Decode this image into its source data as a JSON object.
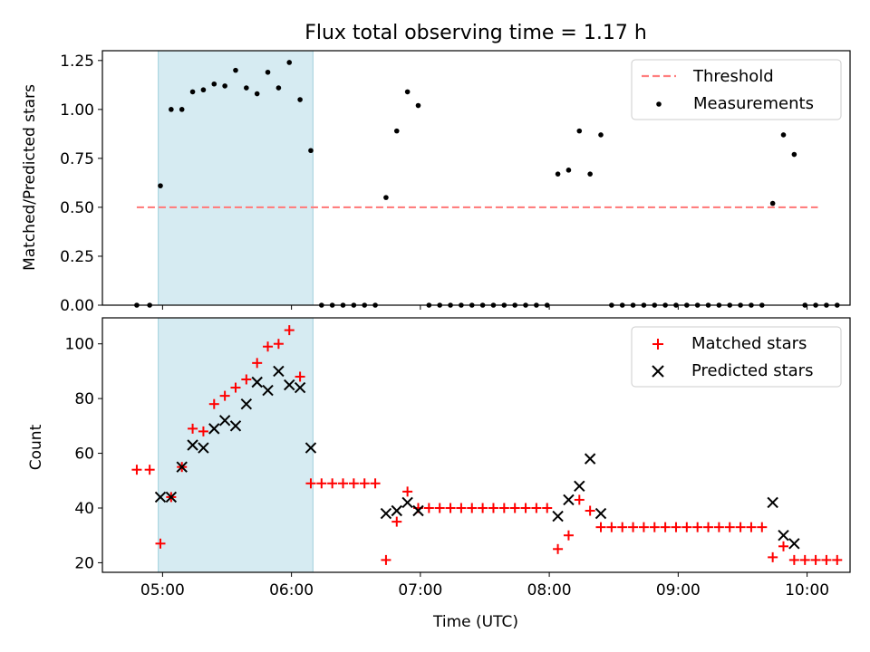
{
  "chart_data": [
    {
      "type": "scatter",
      "title": "Flux total observing time = 1.17 h",
      "xlabel": "",
      "ylabel": "Matched/Predicted stars",
      "xlim": [
        "04:32",
        "10:20"
      ],
      "ylim": [
        0,
        1.3
      ],
      "yticks": [
        0.0,
        0.25,
        0.5,
        0.75,
        1.0,
        1.25
      ],
      "ytick_labels": [
        "0.00",
        "0.25",
        "0.50",
        "0.75",
        "1.00",
        "1.25"
      ],
      "xticks": [
        "05:00",
        "06:00",
        "07:00",
        "08:00",
        "09:00",
        "10:00"
      ],
      "shaded_interval": [
        "04:58",
        "06:10"
      ],
      "legend": {
        "placement": "top-right",
        "entries": [
          "Threshold",
          "Measurements"
        ]
      },
      "threshold": {
        "name": "Threshold",
        "y": 0.5,
        "x_range": [
          "04:48",
          "10:05"
        ],
        "color": "#ff7f7f"
      },
      "series": [
        {
          "name": "Measurements",
          "color": "#000000",
          "marker": "dot",
          "points": [
            [
              "04:48",
              0
            ],
            [
              "04:54",
              0
            ],
            [
              "04:59",
              0.61
            ],
            [
              "05:04",
              1.0
            ],
            [
              "05:09",
              1.0
            ],
            [
              "05:14",
              1.09
            ],
            [
              "05:19",
              1.1
            ],
            [
              "05:24",
              1.13
            ],
            [
              "05:29",
              1.12
            ],
            [
              "05:34",
              1.2
            ],
            [
              "05:39",
              1.11
            ],
            [
              "05:44",
              1.08
            ],
            [
              "05:49",
              1.19
            ],
            [
              "05:54",
              1.11
            ],
            [
              "05:59",
              1.24
            ],
            [
              "06:04",
              1.05
            ],
            [
              "06:09",
              0.79
            ],
            [
              "06:14",
              0
            ],
            [
              "06:19",
              0
            ],
            [
              "06:24",
              0
            ],
            [
              "06:29",
              0
            ],
            [
              "06:34",
              0
            ],
            [
              "06:39",
              0
            ],
            [
              "06:44",
              0.55
            ],
            [
              "06:49",
              0.89
            ],
            [
              "06:54",
              1.09
            ],
            [
              "06:59",
              1.02
            ],
            [
              "07:04",
              0
            ],
            [
              "07:09",
              0
            ],
            [
              "07:14",
              0
            ],
            [
              "07:19",
              0
            ],
            [
              "07:24",
              0
            ],
            [
              "07:29",
              0
            ],
            [
              "07:34",
              0
            ],
            [
              "07:39",
              0
            ],
            [
              "07:44",
              0
            ],
            [
              "07:49",
              0
            ],
            [
              "07:54",
              0
            ],
            [
              "07:59",
              0
            ],
            [
              "08:04",
              0.67
            ],
            [
              "08:09",
              0.69
            ],
            [
              "08:14",
              0.89
            ],
            [
              "08:19",
              0.67
            ],
            [
              "08:24",
              0.87
            ],
            [
              "08:29",
              0
            ],
            [
              "08:34",
              0
            ],
            [
              "08:39",
              0
            ],
            [
              "08:44",
              0
            ],
            [
              "08:49",
              0
            ],
            [
              "08:54",
              0
            ],
            [
              "08:59",
              0
            ],
            [
              "09:04",
              0
            ],
            [
              "09:09",
              0
            ],
            [
              "09:14",
              0
            ],
            [
              "09:19",
              0
            ],
            [
              "09:24",
              0
            ],
            [
              "09:29",
              0
            ],
            [
              "09:34",
              0
            ],
            [
              "09:39",
              0
            ],
            [
              "09:44",
              0.52
            ],
            [
              "09:49",
              0.87
            ],
            [
              "09:54",
              0.77
            ],
            [
              "09:59",
              0
            ],
            [
              "10:04",
              0
            ],
            [
              "10:09",
              0
            ],
            [
              "10:14",
              0
            ]
          ]
        }
      ]
    },
    {
      "type": "scatter",
      "title": "",
      "xlabel": "Time (UTC)",
      "ylabel": "Count",
      "xlim": [
        "04:32",
        "10:20"
      ],
      "ylim": [
        16.5,
        109.5
      ],
      "yticks": [
        20,
        40,
        60,
        80,
        100
      ],
      "ytick_labels": [
        "20",
        "40",
        "60",
        "80",
        "100"
      ],
      "xticks": [
        "05:00",
        "06:00",
        "07:00",
        "08:00",
        "09:00",
        "10:00"
      ],
      "xtick_labels": [
        "05:00",
        "06:00",
        "07:00",
        "08:00",
        "09:00",
        "10:00"
      ],
      "shaded_interval": [
        "04:58",
        "06:10"
      ],
      "legend": {
        "placement": "top-right",
        "entries": [
          "Matched stars",
          "Predicted stars"
        ]
      },
      "series": [
        {
          "name": "Matched stars",
          "color": "#ff0000",
          "marker": "plus",
          "points": [
            [
              "04:48",
              54
            ],
            [
              "04:54",
              54
            ],
            [
              "04:59",
              27
            ],
            [
              "05:04",
              44
            ],
            [
              "05:09",
              55
            ],
            [
              "05:14",
              69
            ],
            [
              "05:19",
              68
            ],
            [
              "05:24",
              78
            ],
            [
              "05:29",
              81
            ],
            [
              "05:34",
              84
            ],
            [
              "05:39",
              87
            ],
            [
              "05:44",
              93
            ],
            [
              "05:49",
              99
            ],
            [
              "05:54",
              100
            ],
            [
              "05:59",
              105
            ],
            [
              "06:04",
              88
            ],
            [
              "06:09",
              49
            ],
            [
              "06:14",
              49
            ],
            [
              "06:19",
              49
            ],
            [
              "06:24",
              49
            ],
            [
              "06:29",
              49
            ],
            [
              "06:34",
              49
            ],
            [
              "06:39",
              49
            ],
            [
              "06:44",
              21
            ],
            [
              "06:49",
              35
            ],
            [
              "06:54",
              46
            ],
            [
              "06:59",
              40
            ],
            [
              "07:04",
              40
            ],
            [
              "07:09",
              40
            ],
            [
              "07:14",
              40
            ],
            [
              "07:19",
              40
            ],
            [
              "07:24",
              40
            ],
            [
              "07:29",
              40
            ],
            [
              "07:34",
              40
            ],
            [
              "07:39",
              40
            ],
            [
              "07:44",
              40
            ],
            [
              "07:49",
              40
            ],
            [
              "07:54",
              40
            ],
            [
              "07:59",
              40
            ],
            [
              "08:04",
              25
            ],
            [
              "08:09",
              30
            ],
            [
              "08:14",
              43
            ],
            [
              "08:19",
              39
            ],
            [
              "08:24",
              33
            ],
            [
              "08:29",
              33
            ],
            [
              "08:34",
              33
            ],
            [
              "08:39",
              33
            ],
            [
              "08:44",
              33
            ],
            [
              "08:49",
              33
            ],
            [
              "08:54",
              33
            ],
            [
              "08:59",
              33
            ],
            [
              "09:04",
              33
            ],
            [
              "09:09",
              33
            ],
            [
              "09:14",
              33
            ],
            [
              "09:19",
              33
            ],
            [
              "09:24",
              33
            ],
            [
              "09:29",
              33
            ],
            [
              "09:34",
              33
            ],
            [
              "09:39",
              33
            ],
            [
              "09:44",
              22
            ],
            [
              "09:49",
              26
            ],
            [
              "09:54",
              21
            ],
            [
              "09:59",
              21
            ],
            [
              "10:04",
              21
            ],
            [
              "10:09",
              21
            ],
            [
              "10:14",
              21
            ]
          ]
        },
        {
          "name": "Predicted stars",
          "color": "#000000",
          "marker": "x",
          "points": [
            [
              "04:59",
              44
            ],
            [
              "05:04",
              44
            ],
            [
              "05:09",
              55
            ],
            [
              "05:14",
              63
            ],
            [
              "05:19",
              62
            ],
            [
              "05:24",
              69
            ],
            [
              "05:29",
              72
            ],
            [
              "05:34",
              70
            ],
            [
              "05:39",
              78
            ],
            [
              "05:44",
              86
            ],
            [
              "05:49",
              83
            ],
            [
              "05:54",
              90
            ],
            [
              "05:59",
              85
            ],
            [
              "06:04",
              84
            ],
            [
              "06:09",
              62
            ],
            [
              "06:44",
              38
            ],
            [
              "06:49",
              39
            ],
            [
              "06:54",
              42
            ],
            [
              "06:59",
              39
            ],
            [
              "08:04",
              37
            ],
            [
              "08:09",
              43
            ],
            [
              "08:14",
              48
            ],
            [
              "08:19",
              58
            ],
            [
              "08:24",
              38
            ],
            [
              "09:44",
              42
            ],
            [
              "09:49",
              30
            ],
            [
              "09:54",
              27
            ]
          ]
        }
      ]
    }
  ]
}
